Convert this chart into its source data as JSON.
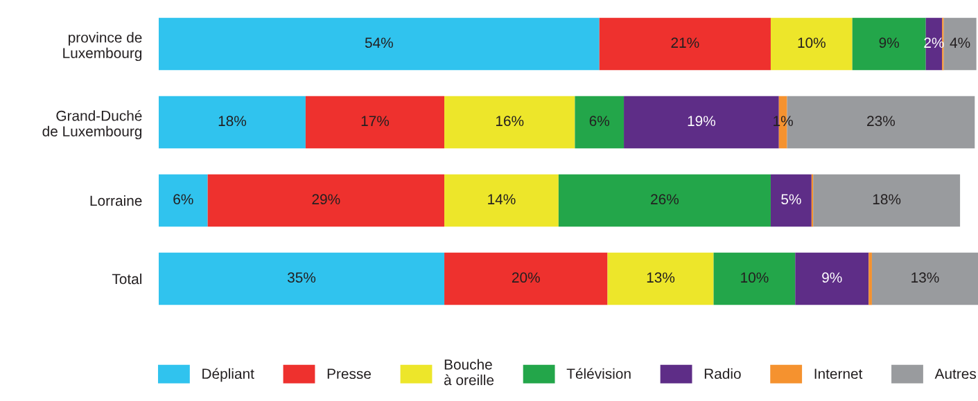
{
  "chart_data": {
    "type": "bar",
    "orientation": "horizontal",
    "stacked": true,
    "legend": "bottom",
    "grid": false,
    "tick_labels": "y",
    "categories": [
      "province de\nLuxembourg",
      "Grand-Duché\nde Luxembourg",
      "Lorraine",
      "Total"
    ],
    "series": [
      {
        "name": "Dépliant",
        "color": "#30c3ee",
        "values": [
          54,
          18,
          6,
          35
        ],
        "value_labels": [
          "54%",
          "18%",
          "6%",
          "35%"
        ]
      },
      {
        "name": "Presse",
        "color": "#ee312e",
        "values": [
          21,
          17,
          29,
          20
        ],
        "value_labels": [
          "21%",
          "17%",
          "29%",
          "20%"
        ]
      },
      {
        "name": "Bouche\nà oreille",
        "color": "#ede62a",
        "values": [
          10,
          16,
          14,
          13
        ],
        "value_labels": [
          "10%",
          "16%",
          "14%",
          "13%"
        ]
      },
      {
        "name": "Télévision",
        "color": "#23a64a",
        "values": [
          9,
          6,
          26,
          10
        ],
        "value_labels": [
          "9%",
          "6%",
          "26%",
          "10%"
        ]
      },
      {
        "name": "Radio",
        "color": "#5e2d87",
        "values": [
          2,
          19,
          5,
          9
        ],
        "value_labels": [
          "2%",
          "19%",
          "5%",
          "9%"
        ]
      },
      {
        "name": "Internet",
        "color": "#f5922f",
        "values": [
          0.2,
          1,
          0.2,
          0.4
        ],
        "value_labels": [
          null,
          "1%",
          null,
          null
        ]
      },
      {
        "name": "Autres",
        "color": "#999b9e",
        "values": [
          4,
          23,
          18,
          13
        ],
        "value_labels": [
          "4%",
          "23%",
          "18%",
          "13%"
        ]
      }
    ]
  }
}
